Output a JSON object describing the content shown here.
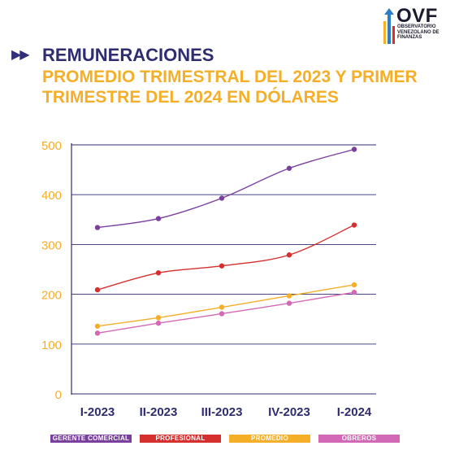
{
  "logo": {
    "title": "OVF",
    "subtitle_lines": [
      "OBSERVATORIO",
      "VENEZOLANO DE",
      "FINANZAS"
    ]
  },
  "header": {
    "section": "REMUNERACIONES",
    "subtitle": "PROMEDIO TRIMESTRAL DEL 2023 Y PRIMER TRIMESTRE DEL 2024 EN DÓLARES"
  },
  "colors": {
    "axis_text": "#f4ae27",
    "x_text": "#2f2c70",
    "grid": "#2f2c70"
  },
  "chart_data": {
    "type": "line",
    "categories": [
      "I-2023",
      "II-2023",
      "III-2023",
      "IV-2023",
      "I-2024"
    ],
    "ylim": [
      0,
      500
    ],
    "yticks": [
      0,
      100,
      200,
      300,
      400,
      500
    ],
    "grid": true,
    "legend_position": "bottom",
    "series": [
      {
        "name": "GERENTE COMERCIAL",
        "color": "#7b3f9e",
        "values": [
          334,
          352,
          393,
          453,
          491
        ]
      },
      {
        "name": "PROFESIONAL",
        "color": "#d5302e",
        "values": [
          209,
          243,
          257,
          279,
          339
        ]
      },
      {
        "name": "PROMEDIO",
        "color": "#f4ae27",
        "values": [
          136,
          153,
          174,
          197,
          219
        ]
      },
      {
        "name": "OBREROS",
        "color": "#d368b6",
        "values": [
          122,
          142,
          161,
          182,
          204
        ]
      }
    ]
  }
}
